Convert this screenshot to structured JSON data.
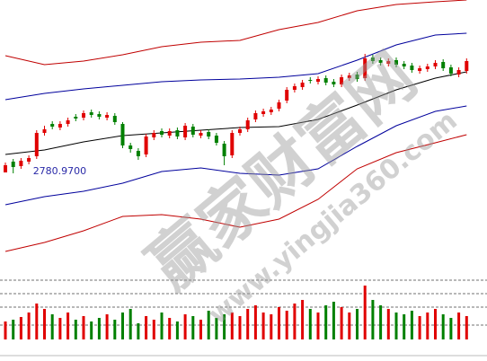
{
  "chart_data": {
    "type": "candlestick",
    "ylim": [
      2674,
      2974
    ],
    "open": [
      2782,
      2794,
      2789,
      2794,
      2800,
      2826,
      2836,
      2832,
      2836,
      2844,
      2843,
      2849,
      2847,
      2843,
      2845,
      2836,
      2812,
      2806,
      2802,
      2821,
      2828,
      2823,
      2829,
      2821,
      2833,
      2823,
      2827,
      2823,
      2814,
      2801,
      2826,
      2830,
      2841,
      2847,
      2849,
      2853,
      2862,
      2874,
      2877,
      2885,
      2883,
      2887,
      2883,
      2880,
      2887,
      2891,
      2887,
      2910,
      2907,
      2903,
      2907,
      2903,
      2901,
      2895,
      2897,
      2900,
      2905,
      2899,
      2891,
      2895
    ],
    "close": [
      2790,
      2788,
      2795,
      2798,
      2826,
      2830,
      2833,
      2836,
      2840,
      2842,
      2848,
      2846,
      2844,
      2846,
      2838,
      2812,
      2808,
      2800,
      2822,
      2826,
      2824,
      2828,
      2822,
      2834,
      2824,
      2826,
      2822,
      2815,
      2800,
      2826,
      2830,
      2840,
      2848,
      2850,
      2852,
      2860,
      2874,
      2878,
      2882,
      2884,
      2886,
      2882,
      2880,
      2888,
      2890,
      2886,
      2909,
      2906,
      2904,
      2906,
      2902,
      2900,
      2896,
      2898,
      2900,
      2904,
      2898,
      2892,
      2896,
      2906
    ],
    "high": [
      2793,
      2797,
      2798,
      2801,
      2829,
      2834,
      2839,
      2839,
      2843,
      2847,
      2851,
      2852,
      2850,
      2849,
      2848,
      2838,
      2815,
      2809,
      2825,
      2829,
      2831,
      2831,
      2832,
      2837,
      2836,
      2829,
      2830,
      2826,
      2817,
      2829,
      2833,
      2843,
      2851,
      2853,
      2855,
      2863,
      2877,
      2881,
      2885,
      2888,
      2889,
      2890,
      2886,
      2891,
      2893,
      2894,
      2914,
      2913,
      2910,
      2909,
      2910,
      2906,
      2904,
      2901,
      2903,
      2907,
      2908,
      2902,
      2899,
      2909
    ],
    "low": [
      2784,
      2781,
      2786,
      2791,
      2797,
      2823,
      2830,
      2829,
      2833,
      2839,
      2840,
      2843,
      2841,
      2840,
      2835,
      2809,
      2804,
      2796,
      2799,
      2818,
      2821,
      2820,
      2819,
      2818,
      2821,
      2820,
      2819,
      2812,
      2790,
      2798,
      2823,
      2827,
      2838,
      2844,
      2846,
      2850,
      2859,
      2871,
      2874,
      2881,
      2880,
      2879,
      2877,
      2877,
      2884,
      2883,
      2884,
      2903,
      2901,
      2900,
      2899,
      2897,
      2893,
      2892,
      2894,
      2897,
      2895,
      2889,
      2888,
      2892
    ],
    "up_color": "#e00000",
    "down_color": "#008000",
    "bands": {
      "x": [
        0,
        5,
        10,
        15,
        20,
        25,
        30,
        35,
        40,
        45,
        50,
        55,
        59
      ],
      "series": [
        {
          "color": "#c00000",
          "values": [
            2912,
            2902,
            2906,
            2913,
            2922,
            2927,
            2929,
            2941,
            2949,
            2962,
            2969,
            2972,
            2974
          ]
        },
        {
          "color": "#00009c",
          "values": [
            2863,
            2870,
            2875,
            2879,
            2883,
            2885,
            2886,
            2888,
            2892,
            2907,
            2924,
            2935,
            2937
          ]
        },
        {
          "color": "#000000",
          "values": [
            2802,
            2807,
            2816,
            2823,
            2826,
            2829,
            2832,
            2833,
            2841,
            2857,
            2874,
            2887,
            2894
          ]
        },
        {
          "color": "#00009c",
          "values": [
            2746,
            2755,
            2761,
            2770,
            2783,
            2787,
            2781,
            2779,
            2786,
            2811,
            2834,
            2850,
            2856
          ]
        },
        {
          "color": "#c00000",
          "values": [
            2694,
            2704,
            2717,
            2733,
            2735,
            2730,
            2721,
            2730,
            2752,
            2786,
            2804,
            2815,
            2824
          ]
        }
      ]
    },
    "volume": {
      "ylim": [
        0,
        70
      ],
      "values": [
        20,
        22,
        25,
        30,
        40,
        34,
        28,
        24,
        30,
        22,
        26,
        20,
        24,
        28,
        22,
        30,
        34,
        18,
        26,
        22,
        30,
        24,
        20,
        28,
        26,
        22,
        32,
        24,
        28,
        30,
        26,
        34,
        38,
        30,
        28,
        36,
        32,
        40,
        44,
        34,
        30,
        38,
        42,
        36,
        30,
        34,
        60,
        44,
        38,
        34,
        30,
        28,
        32,
        26,
        30,
        34,
        28,
        24,
        30,
        26
      ]
    },
    "annotations": [
      {
        "text": "2780.9700",
        "index": 1,
        "color": "#2a2aa8"
      }
    ],
    "watermark": {
      "title": "赢家财富网",
      "url": "www.yingjia360.com"
    }
  }
}
